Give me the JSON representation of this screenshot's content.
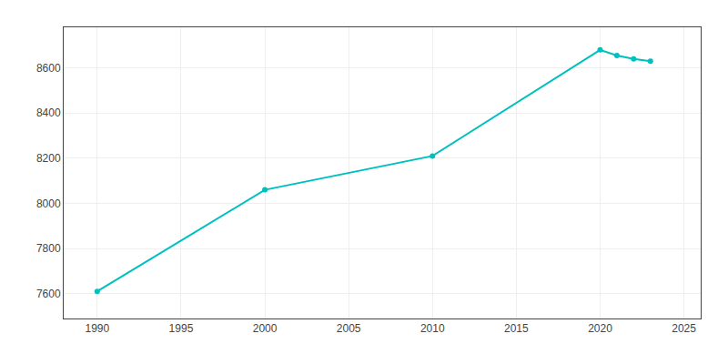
{
  "chart_data": {
    "type": "line",
    "x": [
      1990,
      2000,
      2010,
      2020,
      2021,
      2022,
      2023
    ],
    "values": [
      7610,
      8060,
      8210,
      8680,
      8655,
      8640,
      8630
    ],
    "color": "#00BFBF",
    "marker": "circle",
    "xlim": [
      1988,
      2026
    ],
    "xticks": [
      1990,
      1995,
      2000,
      2005,
      2010,
      2015,
      2020,
      2025
    ],
    "ylim": [
      7490,
      8780
    ],
    "yticks": [
      7600,
      7800,
      8000,
      8200,
      8400,
      8600
    ],
    "grid": true
  }
}
